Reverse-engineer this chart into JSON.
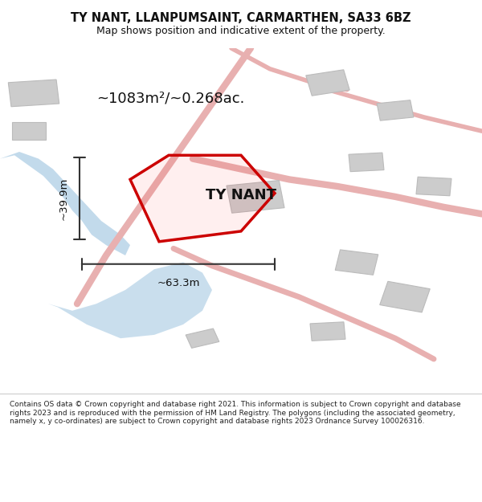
{
  "title_line1": "TY NANT, LLANPUMSAINT, CARMARTHEN, SA33 6BZ",
  "title_line2": "Map shows position and indicative extent of the property.",
  "footer_text": "Contains OS data © Crown copyright and database right 2021. This information is subject to Crown copyright and database rights 2023 and is reproduced with the permission of HM Land Registry. The polygons (including the associated geometry, namely x, y co-ordinates) are subject to Crown copyright and database rights 2023 Ordnance Survey 100026316.",
  "property_label": "TY NANT",
  "area_label": "~1083m²/~0.268ac.",
  "width_label": "~63.3m",
  "height_label": "~39.9m",
  "title_color": "#111111",
  "footer_color": "#222222",
  "map_bg": "#f0eded",
  "road_color": "#e8b0b0",
  "water_color": "#b8d4e8",
  "building_color": "#cccccc",
  "building_edge": "#bbbbbb",
  "property_outline_color": "#cc0000",
  "dim_line_color": "#333333"
}
